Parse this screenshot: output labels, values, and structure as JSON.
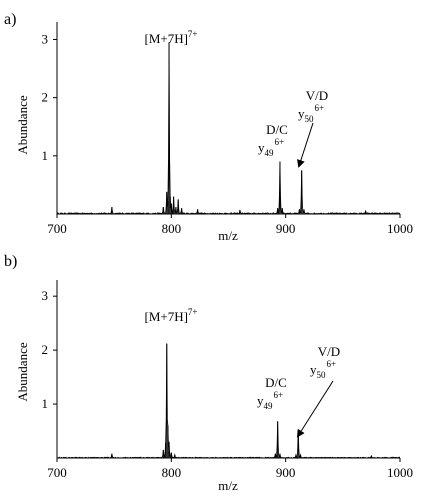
{
  "chart_data": [
    {
      "type": "line",
      "panel_label": "a)",
      "xlabel": "m/z",
      "ylabel": "Abundance",
      "xlim": [
        700,
        1000
      ],
      "ylim": [
        0,
        3.3
      ],
      "x_ticks": [
        700,
        800,
        900,
        1000
      ],
      "y_ticks": [
        1,
        2,
        3
      ],
      "grid": false,
      "baseline_noise": 0.02,
      "peaks": [
        {
          "mz": 748,
          "height": 0.12
        },
        {
          "mz": 793,
          "height": 0.12
        },
        {
          "mz": 796,
          "height": 0.38
        },
        {
          "mz": 797,
          "height": 0.22
        },
        {
          "mz": 798,
          "height": 2.95
        },
        {
          "mz": 799,
          "height": 0.3
        },
        {
          "mz": 800,
          "height": 0.18
        },
        {
          "mz": 802,
          "height": 0.3
        },
        {
          "mz": 804,
          "height": 0.12
        },
        {
          "mz": 806,
          "height": 0.25
        },
        {
          "mz": 809,
          "height": 0.1
        },
        {
          "mz": 823,
          "height": 0.08
        },
        {
          "mz": 860,
          "height": 0.07
        },
        {
          "mz": 893,
          "height": 0.1
        },
        {
          "mz": 895,
          "height": 0.9
        },
        {
          "mz": 897,
          "height": 0.1
        },
        {
          "mz": 912,
          "height": 0.08
        },
        {
          "mz": 914,
          "height": 0.75
        },
        {
          "mz": 916,
          "height": 0.08
        },
        {
          "mz": 970,
          "height": 0.05
        }
      ],
      "annotations": [
        {
          "id": "precursor",
          "main": "[M+7H]",
          "sup": "7+",
          "at_mz": 798
        },
        {
          "id": "y49",
          "line1": "D/C",
          "main": "y",
          "sub": "49",
          "sup": "6+",
          "at_mz": 895
        },
        {
          "id": "y50",
          "line1": "V/D",
          "main": "y",
          "sub": "50",
          "sup": "6+",
          "at_mz": 914,
          "arrow": true
        }
      ]
    },
    {
      "type": "line",
      "panel_label": "b)",
      "xlabel": "m/z",
      "ylabel": "Abundance",
      "xlim": [
        700,
        1000
      ],
      "ylim": [
        0,
        3.3
      ],
      "x_ticks": [
        700,
        800,
        900,
        1000
      ],
      "y_ticks": [
        1,
        2,
        3
      ],
      "grid": false,
      "baseline_noise": 0.015,
      "peaks": [
        {
          "mz": 748,
          "height": 0.08
        },
        {
          "mz": 793,
          "height": 0.15
        },
        {
          "mz": 795,
          "height": 0.28
        },
        {
          "mz": 796,
          "height": 2.12
        },
        {
          "mz": 797,
          "height": 0.6
        },
        {
          "mz": 798,
          "height": 0.3
        },
        {
          "mz": 800,
          "height": 0.1
        },
        {
          "mz": 803,
          "height": 0.06
        },
        {
          "mz": 891,
          "height": 0.08
        },
        {
          "mz": 893,
          "height": 0.68
        },
        {
          "mz": 895,
          "height": 0.08
        },
        {
          "mz": 909,
          "height": 0.06
        },
        {
          "mz": 911,
          "height": 0.52
        },
        {
          "mz": 913,
          "height": 0.06
        },
        {
          "mz": 975,
          "height": 0.04
        }
      ],
      "annotations": [
        {
          "id": "precursor",
          "main": "[M+7H]",
          "sup": "7+",
          "at_mz": 796
        },
        {
          "id": "y49",
          "line1": "D/C",
          "main": "y",
          "sub": "49",
          "sup": "6+",
          "at_mz": 893
        },
        {
          "id": "y50",
          "line1": "V/D",
          "main": "y",
          "sub": "50",
          "sup": "6+",
          "at_mz": 911,
          "arrow": true
        }
      ]
    }
  ]
}
